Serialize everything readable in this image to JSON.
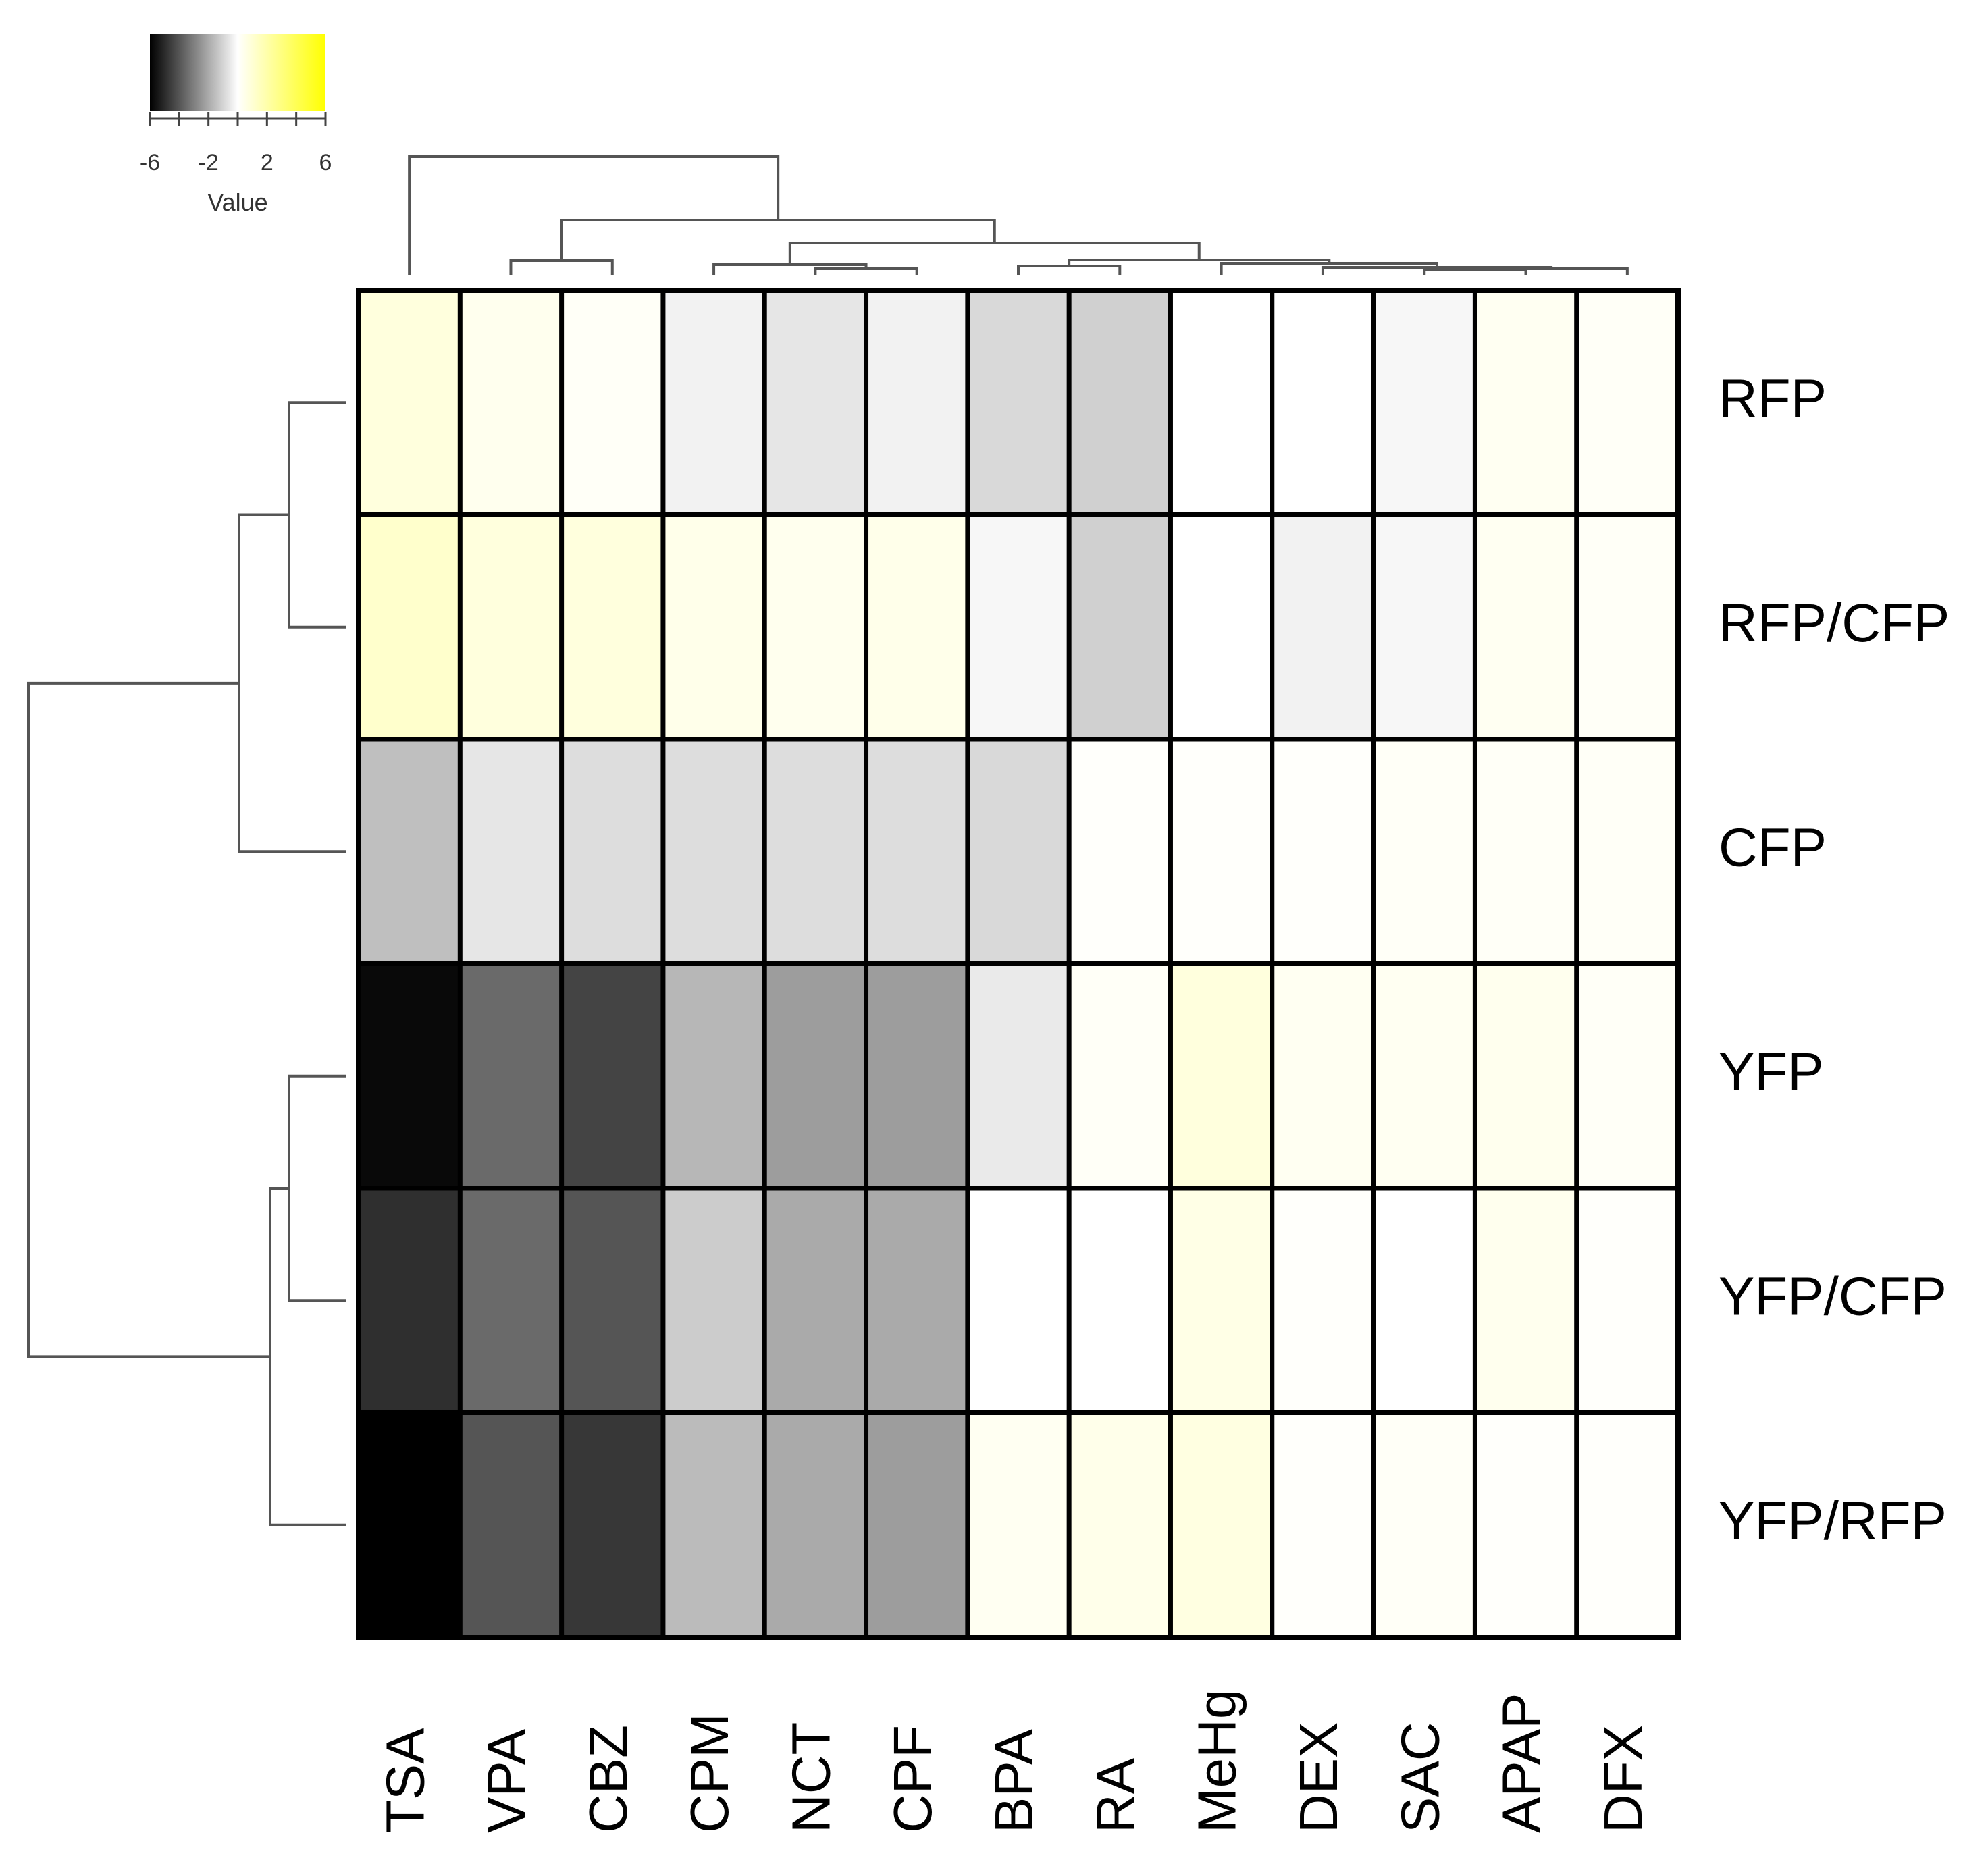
{
  "chart_data": {
    "type": "heatmap",
    "title": "",
    "columns": [
      "TSA",
      "VPA",
      "CBZ",
      "CPM",
      "NCT",
      "CPF",
      "BPA",
      "RA",
      "MeHg",
      "DEX",
      "SAC",
      "APAP",
      "DFX"
    ],
    "rows": [
      "RFP",
      "RFP/CFP",
      "CFP",
      "YFP",
      "YFP/CFP",
      "YFP/RFP"
    ],
    "values": [
      [
        0.8,
        0.4,
        0.2,
        -0.3,
        -0.6,
        -0.3,
        -0.9,
        -1.1,
        0.0,
        0.0,
        -0.2,
        0.3,
        0.2
      ],
      [
        1.2,
        0.8,
        0.8,
        0.5,
        0.4,
        0.5,
        -0.2,
        -1.1,
        0.0,
        -0.3,
        -0.2,
        0.3,
        0.2
      ],
      [
        -1.5,
        -0.6,
        -0.8,
        -0.8,
        -0.8,
        -0.8,
        -0.9,
        0.1,
        0.1,
        0.1,
        0.2,
        0.2,
        0.2
      ],
      [
        -5.8,
        -3.5,
        -4.4,
        -1.7,
        -2.3,
        -2.3,
        -0.5,
        0.2,
        0.8,
        0.3,
        0.3,
        0.4,
        0.2
      ],
      [
        -4.9,
        -3.5,
        -4.0,
        -1.2,
        -2.0,
        -2.0,
        0.0,
        0.0,
        0.6,
        0.1,
        0.0,
        0.4,
        0.1
      ],
      [
        -6.2,
        -4.0,
        -4.7,
        -1.6,
        -2.0,
        -2.3,
        0.3,
        0.5,
        0.7,
        0.1,
        0.2,
        0.1,
        0.1
      ]
    ],
    "color_scale": {
      "range": [
        -6,
        6
      ],
      "stops": [
        {
          "value": -6,
          "color": "#000000"
        },
        {
          "value": 0,
          "color": "#ffffff"
        },
        {
          "value": 6,
          "color": "#ffff00"
        }
      ]
    },
    "legend": {
      "title": "Value",
      "tick_labels": [
        "-6",
        "-2",
        "2",
        "6"
      ],
      "placement": "top-left"
    },
    "row_dendrogram": "left",
    "column_dendrogram": "top"
  }
}
